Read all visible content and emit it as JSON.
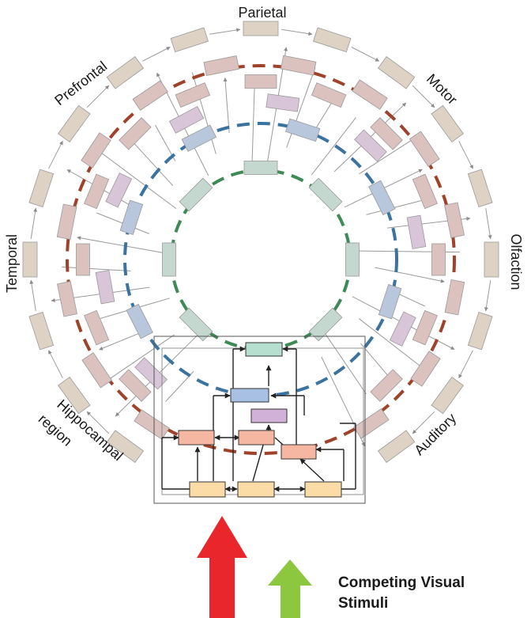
{
  "labels": {
    "parietal": "Parietal",
    "prefrontal": "Prefrontal",
    "motor": "Motor",
    "temporal": "Temporal",
    "olfaction": "Olfaction",
    "hippocampal_line1": "Hippocampal",
    "hippocampal_line2": "region",
    "auditory": "Auditory",
    "stimuli_line1": "Competing Visual",
    "stimuli_line2": "Stimuli"
  },
  "colors": {
    "outer_box": "#ddd2c4",
    "ring3_box": "#dcc2bf",
    "ring2_box": "#d8c6d8",
    "ring1_box": "#b9c7dc",
    "inner_box": "#c4d8d0",
    "ring_brown": "#a0422a",
    "ring_blue": "#3a72a0",
    "ring_green": "#3d8a55",
    "arrow_red": "#e8262c",
    "arrow_green": "#8dc63f",
    "cluster_green": "#b7dfd0",
    "cluster_blue": "#a8c0e4",
    "cluster_purple": "#d2b1d9",
    "cluster_salmon": "#f5b7a2",
    "cluster_yellow": "#fbdca6"
  }
}
